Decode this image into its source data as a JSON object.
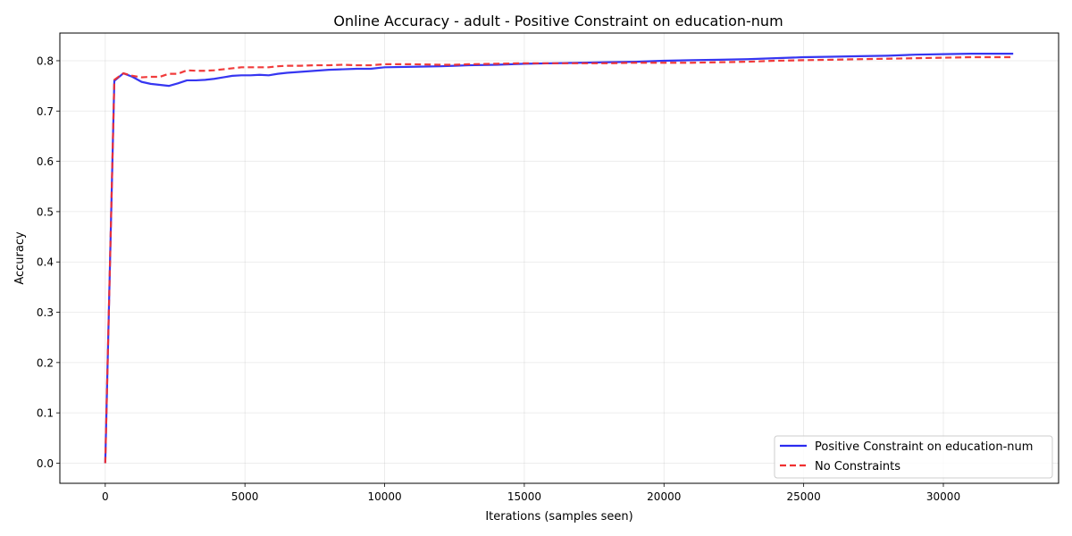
{
  "chart_data": {
    "type": "line",
    "title": "Online Accuracy - adult - Positive Constraint on education-num",
    "xlabel": "Iterations (samples seen)",
    "ylabel": "Accuracy",
    "xlim": [
      -1625,
      34125
    ],
    "ylim": [
      -0.04,
      0.855
    ],
    "xticks": [
      0,
      5000,
      10000,
      15000,
      20000,
      25000,
      30000
    ],
    "xtick_labels": [
      "0",
      "5000",
      "10000",
      "15000",
      "20000",
      "25000",
      "30000"
    ],
    "yticks": [
      0.0,
      0.1,
      0.2,
      0.3,
      0.4,
      0.5,
      0.6,
      0.7,
      0.8
    ],
    "ytick_labels": [
      "0.0",
      "0.1",
      "0.2",
      "0.3",
      "0.4",
      "0.5",
      "0.6",
      "0.7",
      "0.8"
    ],
    "grid": true,
    "legend_position": "lower-right",
    "series": [
      {
        "name": "Positive Constraint on education-num",
        "color": "#2b2bf0",
        "style": "solid",
        "points": [
          [
            0,
            0.0
          ],
          [
            325,
            0.76
          ],
          [
            650,
            0.775
          ],
          [
            975,
            0.768
          ],
          [
            1300,
            0.758
          ],
          [
            1625,
            0.754
          ],
          [
            1950,
            0.752
          ],
          [
            2275,
            0.75
          ],
          [
            2600,
            0.755
          ],
          [
            2925,
            0.761
          ],
          [
            3250,
            0.761
          ],
          [
            3575,
            0.762
          ],
          [
            3900,
            0.764
          ],
          [
            4225,
            0.767
          ],
          [
            4550,
            0.77
          ],
          [
            4875,
            0.771
          ],
          [
            5200,
            0.771
          ],
          [
            5525,
            0.772
          ],
          [
            5850,
            0.771
          ],
          [
            6175,
            0.774
          ],
          [
            6500,
            0.776
          ],
          [
            7000,
            0.778
          ],
          [
            7500,
            0.78
          ],
          [
            8000,
            0.782
          ],
          [
            8500,
            0.783
          ],
          [
            9000,
            0.784
          ],
          [
            9500,
            0.784
          ],
          [
            10000,
            0.787
          ],
          [
            11000,
            0.788
          ],
          [
            12000,
            0.789
          ],
          [
            12500,
            0.79
          ],
          [
            13000,
            0.791
          ],
          [
            14000,
            0.792
          ],
          [
            15000,
            0.794
          ],
          [
            16000,
            0.795
          ],
          [
            17000,
            0.796
          ],
          [
            18000,
            0.797
          ],
          [
            19000,
            0.798
          ],
          [
            20000,
            0.8
          ],
          [
            21000,
            0.801
          ],
          [
            22000,
            0.802
          ],
          [
            23000,
            0.803
          ],
          [
            24000,
            0.805
          ],
          [
            25000,
            0.807
          ],
          [
            26000,
            0.808
          ],
          [
            27000,
            0.809
          ],
          [
            28000,
            0.81
          ],
          [
            29000,
            0.812
          ],
          [
            30000,
            0.813
          ],
          [
            31000,
            0.814
          ],
          [
            32500,
            0.814
          ]
        ]
      },
      {
        "name": "No Constraints",
        "color": "#f03030",
        "style": "dashed",
        "points": [
          [
            0,
            0.0
          ],
          [
            325,
            0.762
          ],
          [
            650,
            0.775
          ],
          [
            975,
            0.77
          ],
          [
            1300,
            0.767
          ],
          [
            1625,
            0.768
          ],
          [
            1950,
            0.768
          ],
          [
            2275,
            0.774
          ],
          [
            2600,
            0.774
          ],
          [
            2925,
            0.781
          ],
          [
            3250,
            0.78
          ],
          [
            3575,
            0.78
          ],
          [
            3900,
            0.781
          ],
          [
            4225,
            0.783
          ],
          [
            4550,
            0.785
          ],
          [
            4875,
            0.787
          ],
          [
            5200,
            0.787
          ],
          [
            5525,
            0.787
          ],
          [
            5850,
            0.787
          ],
          [
            6175,
            0.789
          ],
          [
            6500,
            0.79
          ],
          [
            7000,
            0.79
          ],
          [
            7500,
            0.791
          ],
          [
            8000,
            0.791
          ],
          [
            8500,
            0.792
          ],
          [
            9000,
            0.791
          ],
          [
            9500,
            0.791
          ],
          [
            10000,
            0.793
          ],
          [
            11000,
            0.793
          ],
          [
            12000,
            0.792
          ],
          [
            12500,
            0.792
          ],
          [
            13000,
            0.793
          ],
          [
            14000,
            0.794
          ],
          [
            15000,
            0.795
          ],
          [
            16000,
            0.795
          ],
          [
            17000,
            0.795
          ],
          [
            18000,
            0.795
          ],
          [
            19000,
            0.796
          ],
          [
            20000,
            0.796
          ],
          [
            21000,
            0.796
          ],
          [
            22000,
            0.797
          ],
          [
            23000,
            0.798
          ],
          [
            24000,
            0.8
          ],
          [
            25000,
            0.801
          ],
          [
            26000,
            0.802
          ],
          [
            27000,
            0.803
          ],
          [
            28000,
            0.804
          ],
          [
            29000,
            0.805
          ],
          [
            30000,
            0.806
          ],
          [
            31000,
            0.807
          ],
          [
            32500,
            0.807
          ]
        ]
      }
    ]
  }
}
